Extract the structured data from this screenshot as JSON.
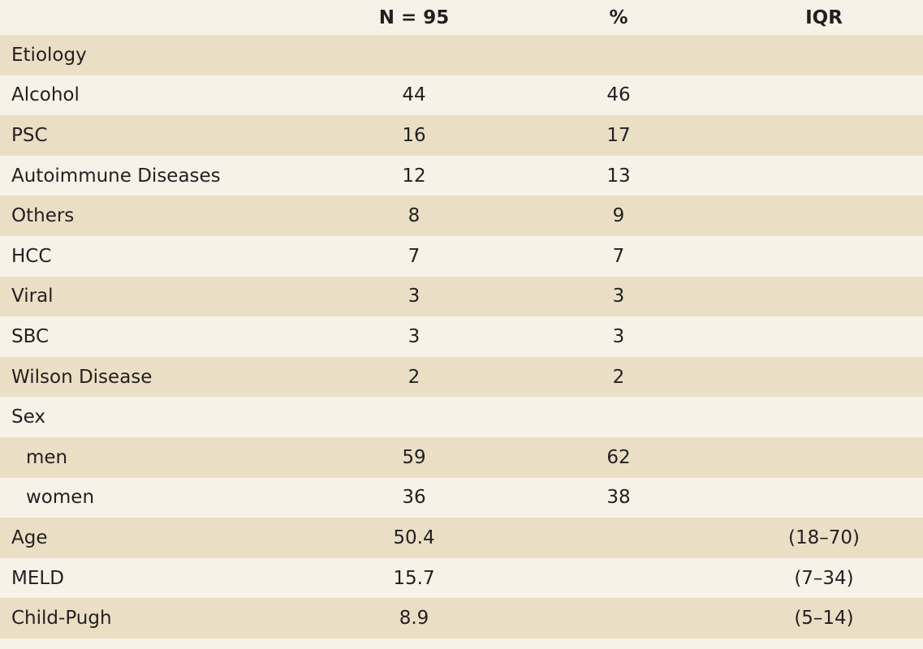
{
  "table": {
    "header": [
      "N = 95",
      "%",
      "IQR"
    ],
    "rows": [
      {
        "label": "Etiology"
      },
      {
        "label": "Alcohol",
        "n": 44,
        "pct": 46
      },
      {
        "label": "PSC",
        "n": 16,
        "pct": 17
      },
      {
        "label": "Autoimmune Diseases",
        "n": 12,
        "pct": 13
      },
      {
        "label": "Others",
        "n": 8,
        "pct": 9
      },
      {
        "label": "HCC",
        "n": 7,
        "pct": 7
      },
      {
        "label": "Viral",
        "n": 3,
        "pct": 3
      },
      {
        "label": "SBC",
        "n": 3,
        "pct": 3
      },
      {
        "label": "Wilson Disease",
        "n": 2,
        "pct": 2
      },
      {
        "label": "Sex"
      },
      {
        "label": "men",
        "n": 59,
        "pct": 62,
        "indent": true
      },
      {
        "label": "women",
        "n": 36,
        "pct": 38,
        "indent": true
      },
      {
        "label": "Age",
        "n": 50.4,
        "iqr": "(18–70)"
      },
      {
        "label": "MELD",
        "n": 15.7,
        "iqr": "(7–34)"
      },
      {
        "label": "Child-Pugh",
        "n": 8.9,
        "iqr": "(5–14)"
      }
    ]
  }
}
